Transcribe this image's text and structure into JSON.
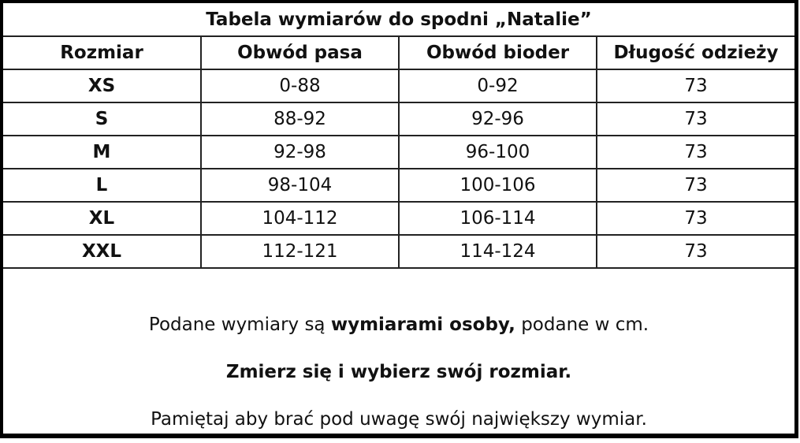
{
  "title": "Tabela wymiarów do spodni „Natalie”",
  "columns": [
    "Rozmiar",
    "Obwód pasa",
    "Obwód bioder",
    "Długość odzieży"
  ],
  "rows": [
    [
      "XS",
      "0-88",
      "0-92",
      "73"
    ],
    [
      "S",
      "88-92",
      "92-96",
      "73"
    ],
    [
      "M",
      "92-98",
      "96-100",
      "73"
    ],
    [
      "L",
      "98-104",
      "100-106",
      "73"
    ],
    [
      "XL",
      "104-112",
      "106-114",
      "73"
    ],
    [
      "XXL",
      "112-121",
      "114-124",
      "73"
    ]
  ],
  "notes": {
    "line1_pre": "Podane wymiary są ",
    "line1_bold": "wymiarami osoby,",
    "line1_post": " podane w cm.",
    "line2": "Zmierz się i wybierz swój rozmiar.",
    "line3": "Pamiętaj aby brać pod uwagę swój największy wymiar."
  }
}
